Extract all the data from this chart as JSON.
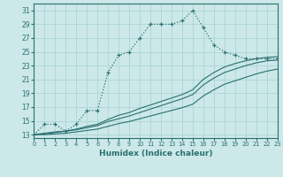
{
  "xlabel": "Humidex (Indice chaleur)",
  "xlim": [
    0,
    23
  ],
  "ylim": [
    12.5,
    32
  ],
  "xticks": [
    0,
    1,
    2,
    3,
    4,
    5,
    6,
    7,
    8,
    9,
    10,
    11,
    12,
    13,
    14,
    15,
    16,
    17,
    18,
    19,
    20,
    21,
    22,
    23
  ],
  "yticks": [
    13,
    15,
    17,
    19,
    21,
    23,
    25,
    27,
    29,
    31
  ],
  "bg_color": "#cce8e8",
  "line_color": "#2a7070",
  "grid_color": "#b0d8d8",
  "curve1_x": [
    0,
    1,
    2,
    3,
    4,
    5,
    6,
    7,
    8,
    9,
    10,
    11,
    12,
    13,
    14,
    15,
    16,
    17,
    18,
    19,
    20,
    21,
    22,
    23
  ],
  "curve1_y": [
    13,
    14.5,
    14.5,
    13.5,
    14.5,
    16.5,
    16.5,
    22,
    24.5,
    25,
    27,
    29,
    29,
    29,
    29.5,
    31,
    28.5,
    26,
    25,
    24.5,
    24,
    24,
    24,
    24
  ],
  "curve2_x": [
    0,
    1,
    2,
    3,
    4,
    5,
    6,
    7,
    8,
    9,
    10,
    11,
    12,
    13,
    14,
    15,
    16,
    17,
    18,
    19,
    20,
    21,
    22,
    23
  ],
  "curve2_y": [
    13,
    13.2,
    13.4,
    13.5,
    13.8,
    14.2,
    14.5,
    15.2,
    15.8,
    16.2,
    16.8,
    17.3,
    17.8,
    18.3,
    18.8,
    19.5,
    21,
    22,
    22.8,
    23.3,
    23.7,
    24,
    24.2,
    24.3
  ],
  "curve3_x": [
    0,
    1,
    2,
    3,
    4,
    5,
    6,
    7,
    8,
    9,
    10,
    11,
    12,
    13,
    14,
    15,
    16,
    17,
    18,
    19,
    20,
    21,
    22,
    23
  ],
  "curve3_y": [
    13,
    13.1,
    13.3,
    13.5,
    13.7,
    14.0,
    14.3,
    14.9,
    15.3,
    15.7,
    16.2,
    16.7,
    17.2,
    17.7,
    18.2,
    18.8,
    20.2,
    21.2,
    22.0,
    22.5,
    23.0,
    23.4,
    23.7,
    23.8
  ],
  "curve4_x": [
    0,
    1,
    2,
    3,
    4,
    5,
    6,
    7,
    8,
    9,
    10,
    11,
    12,
    13,
    14,
    15,
    16,
    17,
    18,
    19,
    20,
    21,
    22,
    23
  ],
  "curve4_y": [
    13,
    13.0,
    13.1,
    13.2,
    13.4,
    13.6,
    13.8,
    14.2,
    14.6,
    14.9,
    15.3,
    15.7,
    16.1,
    16.5,
    16.9,
    17.4,
    18.6,
    19.5,
    20.3,
    20.8,
    21.3,
    21.8,
    22.2,
    22.5
  ]
}
